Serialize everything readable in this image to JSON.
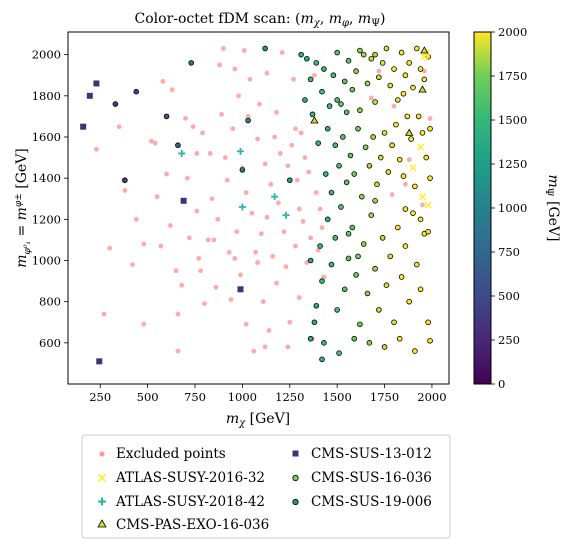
{
  "chart_data": {
    "type": "scatter",
    "title": "Color-octet fDM scan: (mχ, mφ, mΨ)",
    "xlabel": "mχ [GeV]",
    "ylabel": "mφ⁰₁ = mφ± [GeV]",
    "colorbar_label": "mΨ [GeV]",
    "xlim": [
      80,
      2090
    ],
    "ylim": [
      400,
      2110
    ],
    "color_range": [
      0,
      2000
    ],
    "colormap": "viridis",
    "x_ticks": [
      250,
      500,
      750,
      1000,
      1250,
      1500,
      1750,
      2000
    ],
    "y_ticks": [
      600,
      800,
      1000,
      1200,
      1400,
      1600,
      1800,
      2000
    ],
    "colorbar_ticks": [
      0,
      250,
      500,
      750,
      1000,
      1250,
      1500,
      1750,
      2000
    ],
    "grid": false,
    "legend_position": "below",
    "series": [
      {
        "name": "Excluded points",
        "marker": "circle-faded",
        "color": "#ff9b9b",
        "points": [
          [
            230,
            1540
          ],
          [
            270,
            740
          ],
          [
            300,
            1060
          ],
          [
            350,
            1650
          ],
          [
            380,
            1340
          ],
          [
            420,
            980
          ],
          [
            440,
            1200
          ],
          [
            480,
            1080
          ],
          [
            480,
            690
          ],
          [
            520,
            1580
          ],
          [
            550,
            1310
          ],
          [
            570,
            1070
          ],
          [
            580,
            1870
          ],
          [
            600,
            1420
          ],
          [
            620,
            1170
          ],
          [
            630,
            1830
          ],
          [
            650,
            950
          ],
          [
            660,
            740
          ],
          [
            660,
            560
          ],
          [
            680,
            880
          ],
          [
            700,
            1690
          ],
          [
            710,
            1400
          ],
          [
            720,
            1110
          ],
          [
            740,
            1650
          ],
          [
            760,
            1240
          ],
          [
            770,
            1010
          ],
          [
            780,
            950
          ],
          [
            790,
            1620
          ],
          [
            800,
            790
          ],
          [
            820,
            1100
          ],
          [
            830,
            1520
          ],
          [
            840,
            1300
          ],
          [
            860,
            870
          ],
          [
            870,
            1200
          ],
          [
            880,
            1950
          ],
          [
            890,
            1710
          ],
          [
            900,
            2030
          ],
          [
            910,
            1500
          ],
          [
            920,
            1390
          ],
          [
            930,
            1040
          ],
          [
            940,
            810
          ],
          [
            950,
            1640
          ],
          [
            960,
            1930
          ],
          [
            970,
            1140
          ],
          [
            980,
            1800
          ],
          [
            990,
            930
          ],
          [
            1000,
            1450
          ],
          [
            1010,
            2020
          ],
          [
            1020,
            1330
          ],
          [
            1020,
            690
          ],
          [
            1030,
            1700
          ],
          [
            1040,
            1880
          ],
          [
            1050,
            1230
          ],
          [
            1060,
            560
          ],
          [
            1070,
            1040
          ],
          [
            1080,
            1590
          ],
          [
            1080,
            990
          ],
          [
            1090,
            1760
          ],
          [
            1100,
            1130
          ],
          [
            1110,
            800
          ],
          [
            1120,
            1470
          ],
          [
            1130,
            1210
          ],
          [
            1130,
            1910
          ],
          [
            1140,
            660
          ],
          [
            1150,
            1370
          ],
          [
            1160,
            1020
          ],
          [
            1170,
            1600
          ],
          [
            1180,
            1720
          ],
          [
            1180,
            890
          ],
          [
            1190,
            1280
          ],
          [
            1200,
            1520
          ],
          [
            1210,
            2010
          ],
          [
            1220,
            1140
          ],
          [
            1230,
            970
          ],
          [
            1240,
            1460
          ],
          [
            1250,
            700
          ],
          [
            1260,
            1560
          ],
          [
            1270,
            1880
          ],
          [
            1280,
            1070
          ],
          [
            1290,
            1390
          ],
          [
            1300,
            1250
          ],
          [
            1300,
            820
          ],
          [
            1310,
            1620
          ],
          [
            1320,
            1190
          ],
          [
            1330,
            1780
          ],
          [
            1340,
            990
          ],
          [
            1350,
            1430
          ],
          [
            1360,
            1110
          ],
          [
            1370,
            620
          ],
          [
            1380,
            1900
          ],
          [
            1390,
            1330
          ],
          [
            1400,
            1050
          ],
          [
            1410,
            1250
          ],
          [
            1420,
            1160
          ],
          [
            1430,
            920
          ],
          [
            1330,
            1500
          ],
          [
            1280,
            1640
          ],
          [
            1240,
            580
          ],
          [
            1120,
            580
          ],
          [
            960,
            1010
          ],
          [
            850,
            1100
          ],
          [
            540,
            1570
          ],
          [
            760,
            1520
          ],
          [
            1720,
            1920
          ],
          [
            1860,
            1370
          ],
          [
            1880,
            1490
          ],
          [
            1990,
            1690
          ],
          [
            1950,
            1270
          ],
          [
            1800,
            1750
          ],
          [
            1960,
            1920
          ],
          [
            1680,
            1790
          ],
          [
            1790,
            1320
          ]
        ]
      },
      {
        "name": "ATLAS-SUSY-2016-32",
        "marker": "x",
        "color": "#ffee33",
        "points": [
          [
            1940,
            1550
          ],
          [
            1980,
            1270
          ],
          [
            1950,
            1310
          ],
          [
            1900,
            1450
          ],
          [
            1960,
            1990
          ],
          [
            1970,
            2010
          ]
        ]
      },
      {
        "name": "ATLAS-SUSY-2018-42",
        "marker": "plus",
        "color": "#2ab7a0",
        "points": [
          [
            990,
            1530
          ],
          [
            1000,
            1260
          ],
          [
            1170,
            1310
          ],
          [
            1230,
            1220
          ],
          [
            680,
            1520
          ]
        ]
      },
      {
        "name": "CMS-PAS-EXO-16-036",
        "marker": "triangle",
        "color": "#c8e020",
        "points": [
          [
            1380,
            1680
          ],
          [
            1880,
            1620
          ],
          [
            1950,
            1830
          ],
          [
            1960,
            2020
          ]
        ]
      },
      {
        "name": "CMS-SUS-13-012",
        "marker": "square",
        "color": "#3c3577",
        "points": [
          [
            160,
            1650
          ],
          [
            195,
            1800
          ],
          [
            230,
            1860
          ],
          [
            245,
            510
          ],
          [
            690,
            1290
          ],
          [
            990,
            860
          ]
        ]
      },
      {
        "name": "CMS-SUS-16-036",
        "marker": "circle",
        "color": "#7bd34f",
        "points": []
      },
      {
        "name": "CMS-SUS-19-006",
        "marker": "circle",
        "color": "#2d8e8b",
        "points": []
      }
    ],
    "colored_points": [
      [
        330,
        1760,
        400
      ],
      [
        380,
        1390,
        420
      ],
      [
        440,
        1820,
        500
      ],
      [
        600,
        1700,
        650
      ],
      [
        660,
        1560,
        700
      ],
      [
        730,
        1960,
        850
      ],
      [
        1000,
        1440,
        1000
      ],
      [
        1030,
        1680,
        1050
      ],
      [
        1120,
        2030,
        1150
      ],
      [
        1250,
        1390,
        1250
      ],
      [
        1310,
        2000,
        1400
      ],
      [
        1360,
        1880,
        1550
      ],
      [
        1330,
        1780,
        1450
      ],
      [
        1390,
        1960,
        1550
      ],
      [
        1420,
        1820,
        1550
      ],
      [
        1430,
        1930,
        1500
      ],
      [
        1450,
        1640,
        1500
      ],
      [
        1480,
        1900,
        1600
      ],
      [
        1500,
        2010,
        1650
      ],
      [
        1520,
        1760,
        1650
      ],
      [
        1540,
        1870,
        1700
      ],
      [
        1560,
        1970,
        1700
      ],
      [
        1580,
        1830,
        1750
      ],
      [
        1600,
        1920,
        1800
      ],
      [
        1610,
        1640,
        1750
      ],
      [
        1620,
        1730,
        1800
      ],
      [
        1640,
        2000,
        1850
      ],
      [
        1660,
        1860,
        1850
      ],
      [
        1680,
        1980,
        1900
      ],
      [
        1700,
        1770,
        1900
      ],
      [
        1720,
        1890,
        1900
      ],
      [
        1740,
        1960,
        1950
      ],
      [
        1760,
        2030,
        1950
      ],
      [
        1780,
        1850,
        1950
      ],
      [
        1800,
        1930,
        2000
      ],
      [
        1820,
        1780,
        1950
      ],
      [
        1840,
        2010,
        2000
      ],
      [
        1860,
        1900,
        2000
      ],
      [
        1880,
        1960,
        2000
      ],
      [
        1900,
        1840,
        2000
      ],
      [
        1920,
        2030,
        2000
      ],
      [
        1940,
        1930,
        2000
      ],
      [
        1960,
        1880,
        2000
      ],
      [
        1980,
        1990,
        2000
      ],
      [
        1400,
        1570,
        1500
      ],
      [
        1440,
        1420,
        1500
      ],
      [
        1470,
        1330,
        1550
      ],
      [
        1490,
        1560,
        1600
      ],
      [
        1510,
        1460,
        1600
      ],
      [
        1530,
        1600,
        1650
      ],
      [
        1550,
        1380,
        1700
      ],
      [
        1570,
        1510,
        1700
      ],
      [
        1590,
        1420,
        1750
      ],
      [
        1630,
        1310,
        1800
      ],
      [
        1650,
        1550,
        1800
      ],
      [
        1670,
        1460,
        1850
      ],
      [
        1690,
        1600,
        1850
      ],
      [
        1710,
        1370,
        1900
      ],
      [
        1730,
        1500,
        1900
      ],
      [
        1750,
        1620,
        1950
      ],
      [
        1770,
        1430,
        1950
      ],
      [
        1790,
        1560,
        1950
      ],
      [
        1810,
        1660,
        2000
      ],
      [
        1830,
        1490,
        2000
      ],
      [
        1850,
        1410,
        2000
      ],
      [
        1870,
        1700,
        2000
      ],
      [
        1890,
        1590,
        2000
      ],
      [
        1910,
        1360,
        2000
      ],
      [
        1930,
        1700,
        2000
      ],
      [
        1950,
        1620,
        2000
      ],
      [
        1970,
        1500,
        2000
      ],
      [
        1990,
        1640,
        2000
      ],
      [
        1410,
        1070,
        1500
      ],
      [
        1420,
        900,
        1500
      ],
      [
        1450,
        1200,
        1500
      ],
      [
        1470,
        980,
        1550
      ],
      [
        1490,
        1110,
        1600
      ],
      [
        1500,
        760,
        1600
      ],
      [
        1520,
        1260,
        1650
      ],
      [
        1540,
        860,
        1650
      ],
      [
        1560,
        1010,
        1700
      ],
      [
        1580,
        1160,
        1700
      ],
      [
        1600,
        930,
        1750
      ],
      [
        1620,
        690,
        1750
      ],
      [
        1640,
        1080,
        1800
      ],
      [
        1660,
        840,
        1800
      ],
      [
        1680,
        1220,
        1850
      ],
      [
        1700,
        960,
        1850
      ],
      [
        1720,
        760,
        1900
      ],
      [
        1740,
        1110,
        1900
      ],
      [
        1760,
        880,
        1950
      ],
      [
        1780,
        1020,
        1950
      ],
      [
        1800,
        700,
        1950
      ],
      [
        1820,
        1160,
        2000
      ],
      [
        1840,
        920,
        2000
      ],
      [
        1860,
        1070,
        2000
      ],
      [
        1880,
        800,
        2000
      ],
      [
        1900,
        1230,
        2000
      ],
      [
        1920,
        980,
        2000
      ],
      [
        1940,
        860,
        2000
      ],
      [
        1960,
        1130,
        2000
      ],
      [
        1980,
        700,
        2000
      ],
      [
        1430,
        600,
        1500
      ],
      [
        1510,
        550,
        1600
      ],
      [
        1590,
        620,
        1700
      ],
      [
        1670,
        600,
        1800
      ],
      [
        1750,
        580,
        1900
      ],
      [
        1830,
        620,
        2000
      ],
      [
        1910,
        560,
        2000
      ],
      [
        1990,
        610,
        2000
      ],
      [
        1390,
        780,
        1450
      ],
      [
        1360,
        1000,
        1400
      ],
      [
        1380,
        700,
        1400
      ],
      [
        1360,
        620,
        1400
      ],
      [
        1420,
        520,
        1450
      ],
      [
        1560,
        1130,
        1700
      ],
      [
        1610,
        1020,
        1750
      ],
      [
        1700,
        1290,
        1850
      ],
      [
        1860,
        1250,
        2000
      ],
      [
        1940,
        1200,
        2000
      ],
      [
        1990,
        1400,
        2000
      ],
      [
        1980,
        1140,
        2000
      ],
      [
        1850,
        1810,
        2000
      ],
      [
        1620,
        2020,
        1800
      ],
      [
        1700,
        2000,
        1850
      ],
      [
        1500,
        1780,
        1600
      ],
      [
        1550,
        1720,
        1650
      ],
      [
        1460,
        1750,
        1550
      ],
      [
        1370,
        1710,
        1500
      ],
      [
        1340,
        1980,
        1400
      ]
    ],
    "legend_labels": {
      "excluded": "Excluded points",
      "atlas32": "ATLAS-SUSY-2016-32",
      "atlas42": "ATLAS-SUSY-2018-42",
      "cmspas": "CMS-PAS-EXO-16-036",
      "cms13": "CMS-SUS-13-012",
      "cms16": "CMS-SUS-16-036",
      "cms19": "CMS-SUS-19-006"
    }
  }
}
